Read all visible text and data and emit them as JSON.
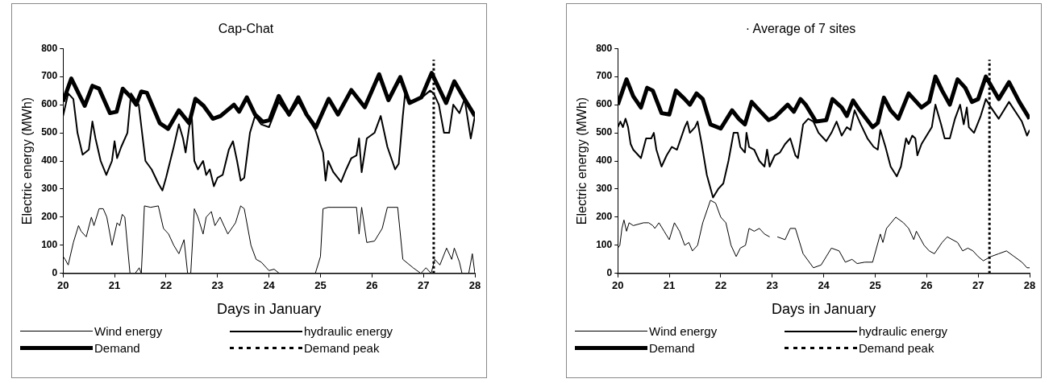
{
  "chart_data": [
    {
      "type": "line",
      "title": "Cap-Chat",
      "xlabel": "Days in January",
      "ylabel": "Electric energy (MWh)",
      "xlim": [
        20,
        28
      ],
      "xticks": [
        20,
        21,
        22,
        23,
        24,
        25,
        26,
        27,
        28
      ],
      "ylim": [
        0,
        800
      ],
      "yticks": [
        0,
        100,
        200,
        300,
        400,
        500,
        600,
        700,
        800
      ],
      "grid": false,
      "legend": "bottom",
      "marker": "none",
      "series": [
        {
          "name": "Wind energy",
          "color": "#000000",
          "line_style": "solid",
          "x": [
            20,
            20.04,
            20.1,
            20.2,
            20.3,
            20.35,
            20.45,
            20.55,
            20.6,
            20.7,
            20.78,
            20.85,
            20.95,
            21.05,
            21.1,
            21.15,
            21.2,
            21.3,
            21.4,
            21.48,
            21.52,
            21.58,
            21.7,
            21.85,
            21.95,
            22.05,
            22.15,
            22.25,
            22.35,
            22.42,
            22.48,
            22.55,
            22.62,
            22.72,
            22.78,
            22.88,
            22.95,
            23.05,
            23.2,
            23.35,
            23.45,
            23.52,
            23.65,
            23.75,
            23.85,
            24,
            24.1,
            24.2,
            24.9,
            25,
            25.05,
            25.15,
            25.7,
            25.75,
            25.8,
            25.9,
            26.05,
            26.2,
            26.3,
            26.5,
            26.6,
            26.8,
            26.95,
            27.05,
            27.15,
            27.22,
            27.32,
            27.45,
            27.55,
            27.6,
            27.7,
            27.75,
            27.88,
            27.95,
            28
          ],
          "values": [
            60,
            50,
            30,
            110,
            170,
            150,
            130,
            200,
            170,
            230,
            230,
            200,
            100,
            180,
            170,
            210,
            200,
            0,
            0,
            20,
            0,
            240,
            235,
            240,
            160,
            140,
            100,
            70,
            120,
            0,
            0,
            230,
            200,
            140,
            200,
            220,
            170,
            200,
            140,
            180,
            240,
            230,
            100,
            50,
            40,
            10,
            15,
            0,
            0,
            60,
            230,
            235,
            235,
            140,
            235,
            110,
            115,
            160,
            235,
            235,
            50,
            20,
            0,
            20,
            0,
            50,
            30,
            90,
            50,
            90,
            40,
            0,
            0,
            70,
            0
          ]
        },
        {
          "name": "hydraulic energy",
          "color": "#000000",
          "line_style": "solid",
          "x": [
            20,
            20.1,
            20.2,
            20.28,
            20.38,
            20.5,
            20.57,
            20.63,
            20.73,
            20.84,
            20.95,
            21,
            21.05,
            21.13,
            21.25,
            21.32,
            21.47,
            21.6,
            21.72,
            21.85,
            21.93,
            22,
            22.15,
            22.25,
            22.33,
            22.38,
            22.45,
            22.5,
            22.55,
            22.62,
            22.72,
            22.78,
            22.85,
            22.93,
            23,
            23.1,
            23.22,
            23.3,
            23.38,
            23.45,
            23.52,
            23.63,
            23.73,
            23.85,
            24,
            24.19,
            24.39,
            24.57,
            24.73,
            24.9,
            25.05,
            25.1,
            25.15,
            25.25,
            25.4,
            25.5,
            25.6,
            25.7,
            25.75,
            25.8,
            25.9,
            26.05,
            26.17,
            26.3,
            26.45,
            26.52,
            26.6,
            26.65,
            26.7,
            26.8,
            27,
            27.13,
            27.2,
            27.3,
            27.4,
            27.5,
            27.58,
            27.7,
            27.8,
            27.92,
            28
          ],
          "values": [
            560,
            640,
            620,
            500,
            422,
            440,
            540,
            480,
            400,
            350,
            400,
            470,
            410,
            450,
            500,
            640,
            600,
            400,
            370,
            320,
            295,
            340,
            450,
            530,
            480,
            430,
            520,
            560,
            400,
            370,
            400,
            350,
            370,
            310,
            340,
            350,
            440,
            470,
            400,
            330,
            340,
            500,
            560,
            530,
            520,
            610,
            560,
            610,
            560,
            510,
            430,
            330,
            400,
            360,
            325,
            370,
            410,
            420,
            480,
            360,
            480,
            500,
            560,
            450,
            370,
            390,
            560,
            650,
            620,
            610,
            630,
            650,
            640,
            600,
            500,
            500,
            600,
            570,
            620,
            480,
            560
          ]
        },
        {
          "name": "Demand",
          "color": "#000000",
          "line_style": "solid",
          "x": [
            20,
            20.16,
            20.42,
            20.57,
            20.7,
            20.91,
            21.04,
            21.16,
            21.32,
            21.42,
            21.52,
            21.63,
            21.88,
            22.04,
            22.25,
            22.45,
            22.57,
            22.73,
            22.91,
            23.06,
            23.32,
            23.42,
            23.57,
            23.73,
            23.88,
            24.01,
            24.19,
            24.39,
            24.57,
            24.73,
            24.91,
            25.16,
            25.34,
            25.6,
            25.86,
            26.14,
            26.32,
            26.55,
            26.73,
            26.96,
            27.16,
            27.44,
            27.6,
            27.78,
            28
          ],
          "values": [
            611,
            693,
            596,
            667,
            657,
            570,
            575,
            657,
            626,
            600,
            647,
            642,
            534,
            514,
            580,
            534,
            621,
            596,
            550,
            560,
            600,
            575,
            626,
            565,
            539,
            545,
            631,
            565,
            626,
            565,
            519,
            621,
            565,
            652,
            591,
            708,
            616,
            698,
            606,
            626,
            713,
            606,
            683,
            626,
            560
          ]
        },
        {
          "name": "Demand peak",
          "color": "#000000",
          "line_style": "dotted",
          "x": [
            27.2,
            27.2
          ],
          "values": [
            0,
            760
          ]
        }
      ]
    },
    {
      "type": "line",
      "title": "· Average of 7 sites",
      "xlabel": "Days in January",
      "ylabel": "Electric energy (MWh)",
      "xlim": [
        20,
        28
      ],
      "xticks": [
        20,
        21,
        22,
        23,
        24,
        25,
        26,
        27,
        28
      ],
      "ylim": [
        0,
        800
      ],
      "yticks": [
        0,
        100,
        200,
        300,
        400,
        500,
        600,
        700,
        800
      ],
      "grid": false,
      "legend": "bottom",
      "marker": "none",
      "series": [
        {
          "name": "Wind energy",
          "color": "#000000",
          "line_style": "solid",
          "x": [
            20,
            20.04,
            20.08,
            20.12,
            20.17,
            20.22,
            20.3,
            20.5,
            20.6,
            20.68,
            20.72,
            20.8,
            20.9,
            21,
            21.1,
            21.2,
            21.3,
            21.38,
            21.45,
            21.55,
            21.65,
            21.8,
            21.9,
            22,
            22.1,
            22.2,
            22.3,
            22.38,
            22.48,
            22.55,
            22.65,
            22.75,
            22.85,
            22.95,
            23.02,
            23.1,
            23.25,
            23.35,
            23.45,
            23.6,
            23.8,
            23.95,
            24.05,
            24.15,
            24.3,
            24.42,
            24.55,
            24.65,
            24.8,
            24.95,
            25.1,
            25.15,
            25.22,
            25.4,
            25.55,
            25.65,
            25.75,
            25.8,
            25.95,
            26.05,
            26.15,
            26.3,
            26.4,
            26.6,
            26.7,
            26.8,
            26.9,
            27,
            27.1,
            27.25,
            27.4,
            27.55,
            27.7,
            27.85,
            27.95,
            28
          ],
          "values": [
            90,
            100,
            160,
            190,
            150,
            180,
            170,
            180,
            180,
            170,
            160,
            180,
            150,
            120,
            180,
            150,
            100,
            110,
            80,
            100,
            180,
            260,
            250,
            200,
            180,
            100,
            60,
            90,
            100,
            160,
            150,
            160,
            140,
            130,
            null,
            130,
            120,
            160,
            160,
            70,
            20,
            30,
            60,
            90,
            80,
            40,
            50,
            35,
            40,
            40,
            140,
            110,
            160,
            200,
            180,
            160,
            120,
            150,
            100,
            80,
            70,
            110,
            130,
            110,
            80,
            90,
            80,
            60,
            45,
            60,
            70,
            80,
            60,
            40,
            20,
            20
          ]
        },
        {
          "name": "hydraulic energy",
          "color": "#000000",
          "line_style": "solid",
          "x": [
            20,
            20.05,
            20.1,
            20.15,
            20.2,
            20.25,
            20.3,
            20.45,
            20.55,
            20.65,
            20.7,
            20.75,
            20.85,
            20.95,
            21.05,
            21.15,
            21.3,
            21.35,
            21.4,
            21.5,
            21.55,
            21.63,
            21.73,
            21.85,
            21.95,
            22.05,
            22.15,
            22.25,
            22.33,
            22.38,
            22.47,
            22.5,
            22.55,
            22.65,
            22.75,
            22.85,
            22.9,
            22.95,
            23.05,
            23.15,
            23.25,
            23.35,
            23.45,
            23.5,
            23.6,
            23.7,
            23.8,
            23.9,
            24.05,
            24.15,
            24.25,
            24.35,
            24.45,
            24.52,
            24.6,
            24.72,
            24.85,
            24.97,
            25.05,
            25.1,
            25.2,
            25.3,
            25.42,
            25.5,
            25.6,
            25.65,
            25.72,
            25.78,
            25.82,
            25.9,
            26,
            26.1,
            26.17,
            26.28,
            26.35,
            26.45,
            26.55,
            26.65,
            26.72,
            26.78,
            26.82,
            26.92,
            27.05,
            27.15,
            27.25,
            27.4,
            27.6,
            27.85,
            27.95,
            28
          ],
          "values": [
            520,
            540,
            520,
            550,
            520,
            460,
            440,
            410,
            480,
            480,
            500,
            440,
            380,
            420,
            450,
            440,
            520,
            540,
            500,
            520,
            540,
            460,
            350,
            270,
            300,
            320,
            400,
            500,
            500,
            450,
            430,
            500,
            450,
            440,
            400,
            380,
            440,
            380,
            420,
            430,
            460,
            480,
            420,
            410,
            530,
            550,
            540,
            500,
            470,
            500,
            540,
            490,
            520,
            510,
            580,
            530,
            480,
            450,
            440,
            510,
            450,
            380,
            345,
            380,
            480,
            460,
            490,
            480,
            420,
            460,
            490,
            520,
            600,
            530,
            480,
            480,
            550,
            600,
            530,
            590,
            520,
            500,
            560,
            620,
            590,
            550,
            610,
            540,
            490,
            510
          ]
        },
        {
          "name": "Demand",
          "color": "#000000",
          "line_style": "solid",
          "x": [
            20,
            20.17,
            20.3,
            20.45,
            20.57,
            20.68,
            20.85,
            21,
            21.13,
            21.3,
            21.4,
            21.53,
            21.65,
            21.8,
            22,
            22.22,
            22.35,
            22.47,
            22.6,
            22.75,
            22.93,
            23.05,
            23.3,
            23.42,
            23.55,
            23.65,
            23.85,
            24.05,
            24.17,
            24.35,
            24.45,
            24.57,
            24.7,
            24.95,
            25.05,
            25.17,
            25.3,
            25.45,
            25.65,
            25.8,
            25.9,
            26.05,
            26.17,
            26.3,
            26.45,
            26.6,
            26.75,
            26.88,
            27,
            27.15,
            27.4,
            27.6,
            27.8,
            28
          ],
          "values": [
            600,
            690,
            630,
            590,
            660,
            650,
            570,
            565,
            650,
            620,
            600,
            640,
            620,
            530,
            515,
            580,
            550,
            530,
            610,
            580,
            545,
            555,
            600,
            575,
            620,
            600,
            540,
            545,
            620,
            590,
            560,
            615,
            580,
            520,
            535,
            625,
            580,
            550,
            640,
            610,
            590,
            610,
            700,
            650,
            600,
            690,
            660,
            610,
            620,
            700,
            620,
            680,
            610,
            550
          ]
        },
        {
          "name": "Demand peak",
          "color": "#000000",
          "line_style": "dotted",
          "x": [
            27.22,
            27.22
          ],
          "values": [
            0,
            760
          ]
        }
      ]
    }
  ]
}
